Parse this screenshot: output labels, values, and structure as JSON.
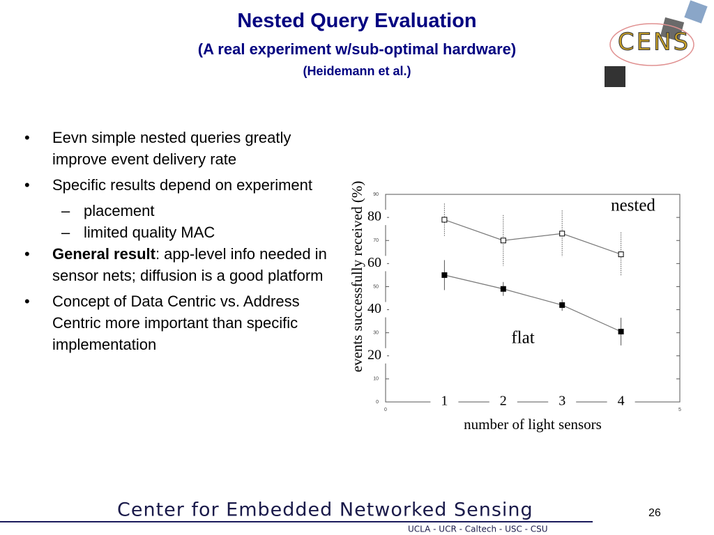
{
  "header": {
    "title": "Nested Query Evaluation",
    "subtitle": "(A real experiment w/sub-optimal hardware)",
    "credit": "(Heidemann et al.)"
  },
  "logo": {
    "text": "CENS"
  },
  "bullets": [
    {
      "text": "Eevn simple nested queries greatly improve event delivery rate"
    },
    {
      "text": "Specific results depend on experiment",
      "sub": [
        "placement",
        "limited quality MAC"
      ]
    },
    {
      "bold": "General result",
      "text": ": app-level info needed in sensor nets; diffusion is a good platform"
    },
    {
      "text": "Concept of Data Centric vs. Address Centric more important than specific implementation"
    }
  ],
  "chart_data": {
    "type": "line",
    "x_label": "number of light sensors",
    "y_label": "events successfully received (%)",
    "x": [
      1,
      2,
      3,
      4
    ],
    "series": [
      {
        "name": "nested",
        "color": "#777777",
        "marker_fill": "#ffffff",
        "values": [
          79,
          70,
          73,
          64
        ],
        "errors": [
          7,
          11,
          10,
          9.5
        ]
      },
      {
        "name": "flat",
        "color": "#777777",
        "marker_fill": "#000000",
        "values": [
          55,
          49,
          42,
          30.5
        ],
        "errors": [
          6.5,
          3,
          2.5,
          6
        ]
      }
    ],
    "xlim": [
      0,
      5
    ],
    "ylim": [
      0,
      90
    ],
    "xticks": [
      0,
      5
    ],
    "yticks": [
      0,
      10,
      20,
      30,
      40,
      50,
      60,
      70,
      80,
      90
    ],
    "x_overlay_ticks": [
      1,
      2,
      3,
      4
    ],
    "y_overlay_ticks": [
      20,
      40,
      60,
      80
    ],
    "grid": false
  },
  "footer": {
    "center": "Center for Embedded Networked Sensing",
    "members": "UCLA - UCR - Caltech - USC - CSU",
    "page": "26"
  }
}
